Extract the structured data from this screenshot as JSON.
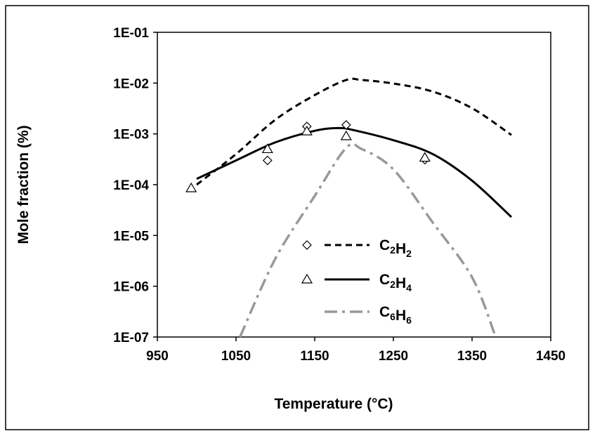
{
  "chart_data": {
    "type": "line",
    "title": "",
    "xlabel": "Temperature (°C)",
    "ylabel": "Mole fraction (%)",
    "xlim": [
      950,
      1450
    ],
    "ylim": [
      1e-07,
      0.1
    ],
    "yscale": "log",
    "xticks": [
      "950",
      "1050",
      "1150",
      "1250",
      "1350",
      "1450"
    ],
    "yticks": [
      "1E-07",
      "1E-06",
      "1E-05",
      "1E-04",
      "1E-03",
      "1E-02",
      "1E-01"
    ],
    "grid": false,
    "legend_position": "center-bottom",
    "series": [
      {
        "name": "C2H2",
        "label_main": [
          "C",
          "H"
        ],
        "label_sub": [
          "2",
          "2"
        ],
        "style": "dashed",
        "color": "#000000",
        "x": [
          1000,
          1050,
          1100,
          1150,
          1190,
          1210,
          1250,
          1300,
          1350,
          1400
        ],
        "y": [
          0.0001,
          0.0004,
          0.0019,
          0.0058,
          0.0115,
          0.0115,
          0.0098,
          0.0068,
          0.0032,
          0.00095
        ]
      },
      {
        "name": "C2H4",
        "label_main": [
          "C",
          "H"
        ],
        "label_sub": [
          "2",
          "4"
        ],
        "style": "solid",
        "color": "#000000",
        "x": [
          1000,
          1050,
          1100,
          1150,
          1180,
          1200,
          1250,
          1300,
          1350,
          1400
        ],
        "y": [
          0.00013,
          0.0003,
          0.00068,
          0.00115,
          0.0013,
          0.00118,
          0.00075,
          0.0004,
          0.00012,
          2.3e-05
        ]
      },
      {
        "name": "C6H6",
        "label_main": [
          "C",
          "H"
        ],
        "label_sub": [
          "6",
          "6"
        ],
        "style": "dash-dot",
        "color": "#999999",
        "x": [
          1055,
          1100,
          1150,
          1190,
          1210,
          1250,
          1300,
          1350,
          1380
        ],
        "y": [
          1e-07,
          3.5e-06,
          6e-05,
          0.00053,
          0.0005,
          0.0002,
          1.8e-05,
          1.5e-06,
          1e-07
        ]
      }
    ],
    "markers": [
      {
        "series": "C2H2",
        "shape": "diamond",
        "x": [
          1090,
          1140,
          1190,
          1290
        ],
        "y": [
          0.0003,
          0.0014,
          0.0015,
          0.00031
        ]
      },
      {
        "series": "C2H4",
        "shape": "triangle",
        "x": [
          993,
          1090,
          1140,
          1190,
          1290
        ],
        "y": [
          8.5e-05,
          0.0005,
          0.00112,
          0.0009,
          0.00034
        ]
      }
    ]
  }
}
